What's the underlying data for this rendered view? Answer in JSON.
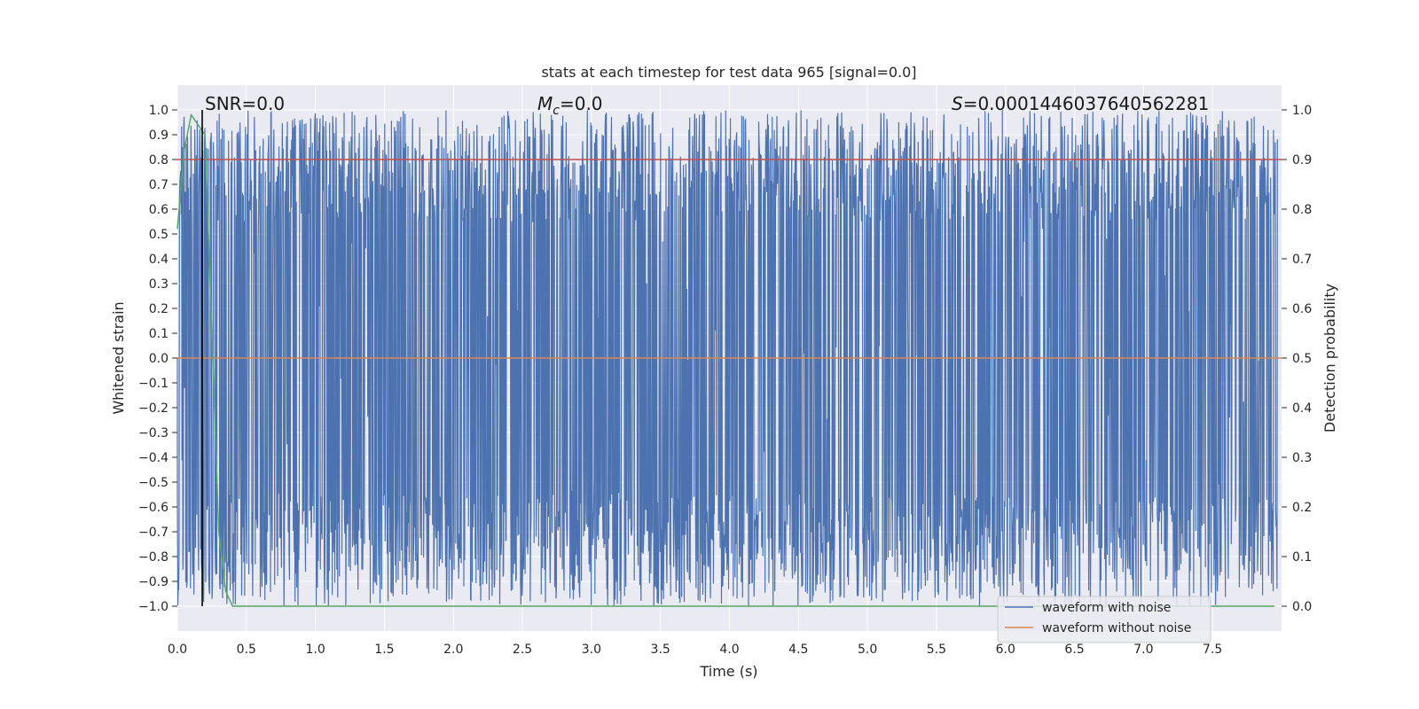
{
  "chart_data": {
    "type": "line",
    "title": "stats at each timestep for test data 965 [signal=0.0]",
    "xlabel": "Time (s)",
    "ylabel_left": "Whitened strain",
    "ylabel_right": "Detection probability",
    "xlim": [
      0.0,
      8.0
    ],
    "ylim_left": [
      -1.1,
      1.1
    ],
    "ylim_right": [
      -0.05,
      1.05
    ],
    "x_ticks": [
      "0.0",
      "0.5",
      "1.0",
      "1.5",
      "2.0",
      "2.5",
      "3.0",
      "3.5",
      "4.0",
      "4.5",
      "5.0",
      "5.5",
      "6.0",
      "6.5",
      "7.0",
      "7.5"
    ],
    "y_ticks_left": [
      "1.0",
      "0.9",
      "0.8",
      "0.7",
      "0.6",
      "0.5",
      "0.4",
      "0.3",
      "0.2",
      "0.1",
      "0.0",
      "−0.1",
      "−0.2",
      "−0.3",
      "−0.4",
      "−0.5",
      "−0.6",
      "−0.7",
      "−0.8",
      "−0.9",
      "−1.0"
    ],
    "y_ticks_right": [
      "1.0",
      "0.9",
      "0.8",
      "0.7",
      "0.6",
      "0.5",
      "0.4",
      "0.3",
      "0.2",
      "0.1",
      "0.0"
    ],
    "grid": true,
    "annotations": {
      "snr": "SNR=0.0",
      "mc_symbol": "M",
      "mc_sub": "c",
      "mc_value": "=0.0",
      "s_symbol": "S",
      "s_value": "=0.0001446037640562281"
    },
    "series": [
      {
        "name": "waveform with noise",
        "color": "#4c72b0",
        "style": "dense noise filling roughly −1.0 to 1.0 across the full time range"
      },
      {
        "name": "waveform without noise",
        "color": "#dd8452",
        "x": [
          0.0,
          8.0
        ],
        "y": [
          0.0,
          0.0
        ]
      },
      {
        "color": "#55a868",
        "axis": "right",
        "x": [
          0.0,
          0.05,
          0.1,
          0.15,
          0.2,
          0.25,
          0.3,
          0.35,
          0.4,
          1.0,
          2.0,
          3.0,
          4.0,
          5.0,
          6.0,
          7.0,
          7.95
        ],
        "y": [
          0.76,
          0.92,
          0.99,
          0.97,
          0.95,
          0.55,
          0.15,
          0.03,
          0.0,
          0.0,
          0.0,
          0.0,
          0.0,
          0.0,
          0.0,
          0.0,
          0.0
        ]
      },
      {
        "color": "#c44e52",
        "axis": "right",
        "x": [
          0.0,
          8.0
        ],
        "y": [
          0.9,
          0.9
        ]
      },
      {
        "color": "#000000",
        "style": "vertical line",
        "x": [
          0.18,
          0.18
        ],
        "y": [
          -1.0,
          1.0
        ]
      }
    ],
    "legend": {
      "placement": "lower right",
      "entries": [
        {
          "label": "waveform with noise",
          "color": "#4c72b0"
        },
        {
          "label": "waveform without noise",
          "color": "#dd8452"
        }
      ]
    },
    "colors": {
      "plot_background": "#eaeaf2",
      "grid": "#ffffff",
      "noise": "#4c72b0",
      "clean": "#dd8452",
      "probability": "#55a868",
      "threshold": "#c44e52",
      "marker": "#000000"
    }
  }
}
